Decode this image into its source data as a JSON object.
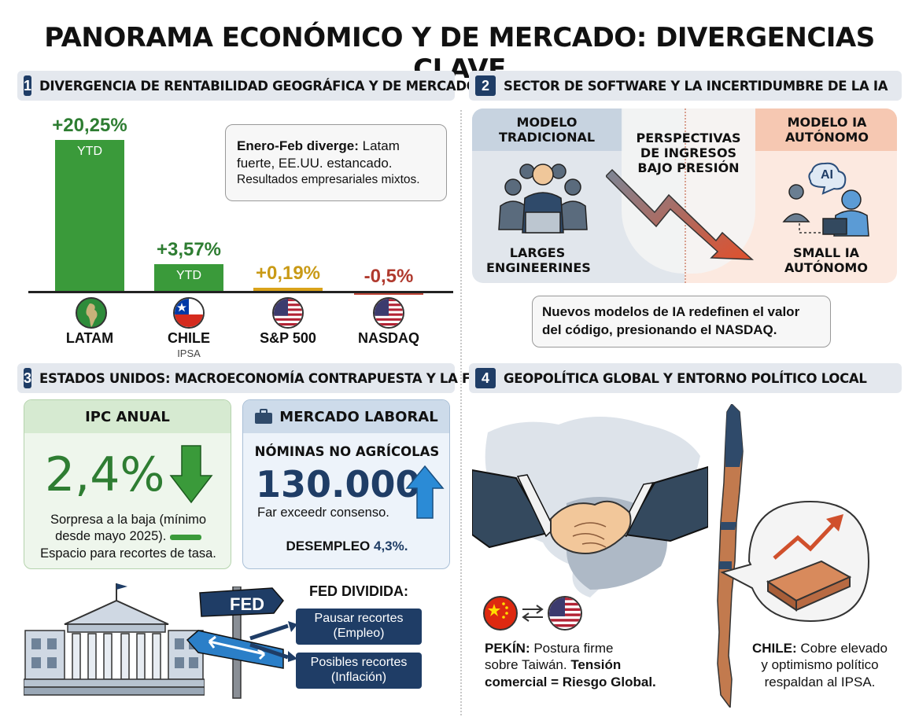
{
  "title": "PANORAMA ECONÓMICO Y DE MERCADO: DIVERGENCIAS CLAVE",
  "sections": [
    {
      "num": "1",
      "title": "DIVERGENCIA DE RENTABILIDAD GEOGRÁFICA Y DE MERCADO"
    },
    {
      "num": "2",
      "title": "SECTOR DE SOFTWARE Y LA INCERTIDUMBRE DE LA IA"
    },
    {
      "num": "3",
      "title": "ESTADOS UNIDOS: MACROECONOMÍA CONTRAPUESTA Y LA FED"
    },
    {
      "num": "4",
      "title": "GEOPOLÍTICA GLOBAL Y ENTORNO POLÍTICO LOCAL"
    }
  ],
  "chart_data": {
    "type": "bar",
    "categories": [
      "LATAM",
      "CHILE",
      "S&P 500",
      "NASDAQ"
    ],
    "values": [
      20.25,
      3.57,
      0.19,
      -0.5
    ],
    "value_labels": [
      "+20,25%",
      "+3,57%",
      "+0,19%",
      "-0,5%"
    ],
    "bar_tags": [
      "YTD",
      "YTD",
      "",
      ""
    ],
    "sub_labels": [
      "",
      "IPSA",
      "",
      ""
    ],
    "colors": [
      "#3a9a3a",
      "#3a9a3a",
      "#d9a21a",
      "#c0483a"
    ],
    "label_colors": [
      "#2e7d32",
      "#2e7d32",
      "#c99a16",
      "#b03a2e"
    ]
  },
  "callout1": {
    "bold": "Enero-Feb diverge:",
    "text1": " Latam fuerte, EE.UU. estancado.",
    "text2": "Resultados empresariales mixtos."
  },
  "ai": {
    "left_title": "MODELO TRADICIONAL",
    "center_title": "PERSPECTIVAS DE INGRESOS BAJO PRESIÓN",
    "right_title": "MODELO IA AUTÓNOMO",
    "left_label": "LARGES ENGINEERINES",
    "right_label": "SMALL IA AUTÓNOMO",
    "ai_bubble": "AI",
    "callout": "Nuevos modelos de IA redefinen el valor del código, presionando el NASDAQ."
  },
  "ipc": {
    "title": "IPC ANUAL",
    "value": "2,4%",
    "desc1": "Sorpresa a la baja (mínimo",
    "desc2": "desde mayo 2025).",
    "desc3": "Espacio para recortes de tasa."
  },
  "labor": {
    "title": "MERCADO LABORAL",
    "subtitle": "NÓMINAS NO AGRÍCOLAS",
    "value": "130.000",
    "note": "Far exceedr consenso.",
    "unemp_label": "DESEMPLEO",
    "unemp_value": "4,3%."
  },
  "fed": {
    "sign": "FED",
    "title": "FED DIVIDIDA:",
    "opt1a": "Pausar recortes",
    "opt1b": "(Empleo)",
    "opt2a": "Posibles recortes",
    "opt2b": "(Inflación)"
  },
  "geo": {
    "pekin_bold": "PEKÍN:",
    "pekin_text1": " Postura firme",
    "pekin_text2": "sobre Taiwán. ",
    "pekin_bold2": "Tensión",
    "pekin_bold3": "comercial = Riesgo Global.",
    "chile_bold": "CHILE:",
    "chile_text1": " Cobre elevado",
    "chile_text2": "y optimismo político",
    "chile_text3": "respaldan al IPSA."
  }
}
